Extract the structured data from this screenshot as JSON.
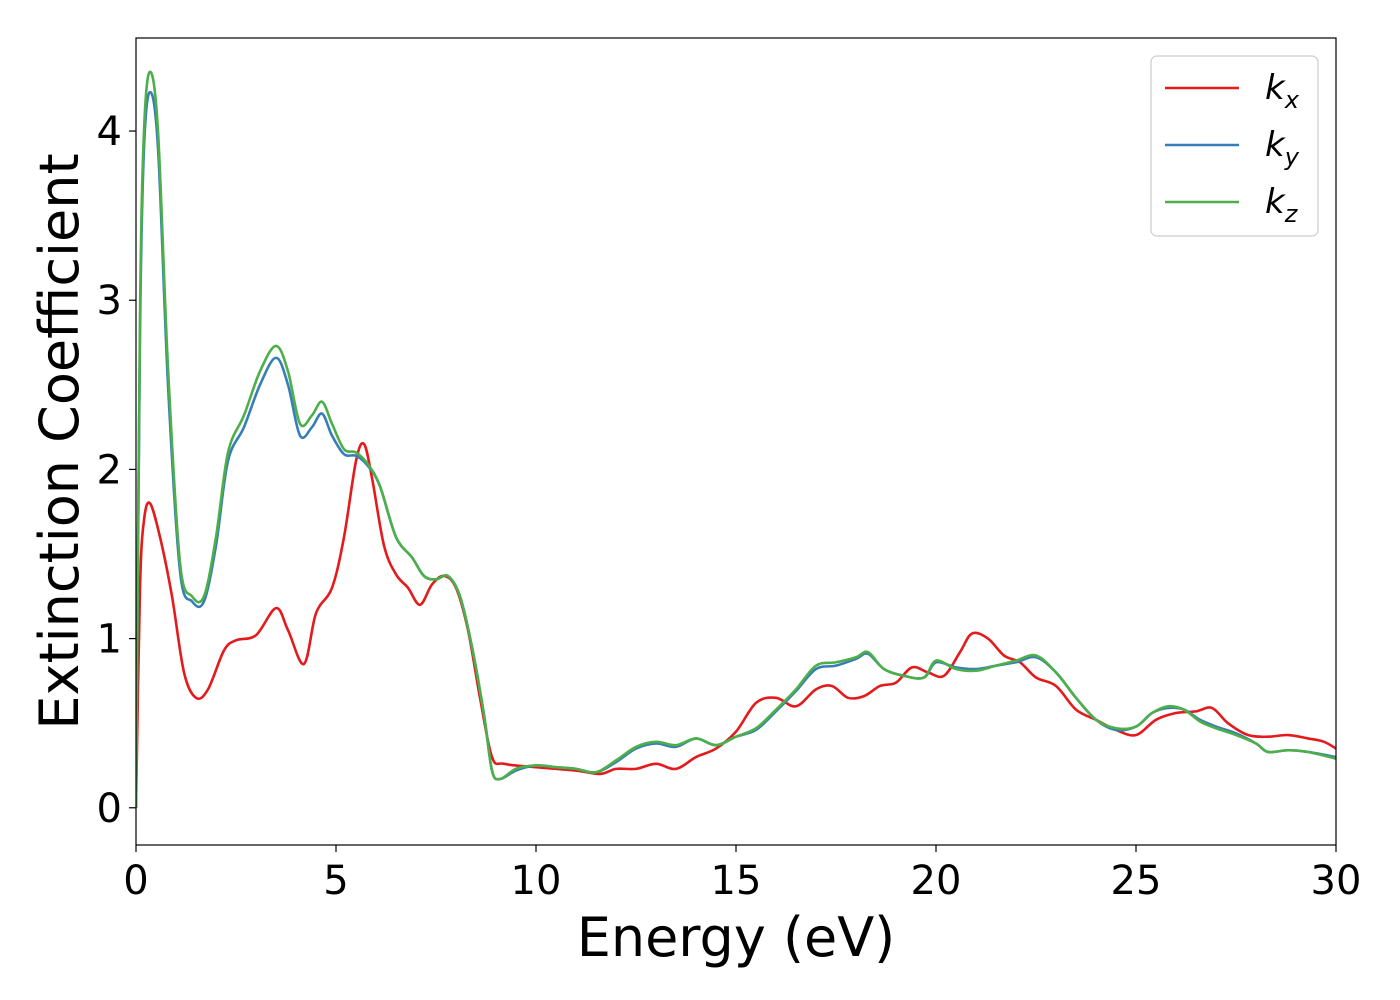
{
  "chart_data": {
    "type": "line",
    "xlabel": "Energy (eV)",
    "ylabel": "Extinction Coefficient",
    "xlim": [
      0,
      30
    ],
    "ylim": [
      -0.22,
      4.55
    ],
    "xticks": [
      "0",
      "5",
      "10",
      "15",
      "20",
      "25",
      "30"
    ],
    "yticks": [
      "0",
      "1",
      "2",
      "3",
      "4"
    ],
    "grid": false,
    "legend_position": "top-right",
    "series": [
      {
        "name": "k_x",
        "label_main": "k",
        "label_sub": "x",
        "color": "#e41a1c",
        "points": [
          [
            0,
            0
          ],
          [
            0.1,
            1.3
          ],
          [
            0.2,
            1.7
          ],
          [
            0.35,
            1.8
          ],
          [
            0.6,
            1.6
          ],
          [
            0.9,
            1.25
          ],
          [
            1.2,
            0.8
          ],
          [
            1.5,
            0.65
          ],
          [
            1.8,
            0.7
          ],
          [
            2.2,
            0.93
          ],
          [
            2.5,
            0.99
          ],
          [
            3.0,
            1.02
          ],
          [
            3.5,
            1.18
          ],
          [
            3.8,
            1.05
          ],
          [
            4.2,
            0.85
          ],
          [
            4.5,
            1.15
          ],
          [
            4.9,
            1.3
          ],
          [
            5.2,
            1.6
          ],
          [
            5.5,
            2.05
          ],
          [
            5.7,
            2.15
          ],
          [
            5.9,
            1.95
          ],
          [
            6.2,
            1.55
          ],
          [
            6.5,
            1.38
          ],
          [
            6.8,
            1.3
          ],
          [
            7.1,
            1.2
          ],
          [
            7.4,
            1.32
          ],
          [
            7.7,
            1.37
          ],
          [
            8.0,
            1.3
          ],
          [
            8.3,
            1.05
          ],
          [
            8.6,
            0.65
          ],
          [
            8.9,
            0.3
          ],
          [
            9.2,
            0.26
          ],
          [
            10,
            0.24
          ],
          [
            11,
            0.22
          ],
          [
            11.6,
            0.2
          ],
          [
            12.0,
            0.23
          ],
          [
            12.5,
            0.23
          ],
          [
            13.0,
            0.26
          ],
          [
            13.5,
            0.23
          ],
          [
            14.0,
            0.3
          ],
          [
            14.5,
            0.35
          ],
          [
            15.0,
            0.45
          ],
          [
            15.5,
            0.62
          ],
          [
            16.0,
            0.65
          ],
          [
            16.5,
            0.6
          ],
          [
            17.0,
            0.7
          ],
          [
            17.4,
            0.72
          ],
          [
            17.8,
            0.65
          ],
          [
            18.2,
            0.66
          ],
          [
            18.6,
            0.72
          ],
          [
            19.0,
            0.74
          ],
          [
            19.4,
            0.83
          ],
          [
            19.8,
            0.8
          ],
          [
            20.2,
            0.78
          ],
          [
            20.6,
            0.92
          ],
          [
            20.9,
            1.03
          ],
          [
            21.3,
            1.0
          ],
          [
            21.7,
            0.9
          ],
          [
            22.1,
            0.86
          ],
          [
            22.5,
            0.77
          ],
          [
            23.0,
            0.72
          ],
          [
            23.5,
            0.58
          ],
          [
            24.0,
            0.52
          ],
          [
            24.5,
            0.46
          ],
          [
            25.0,
            0.43
          ],
          [
            25.5,
            0.52
          ],
          [
            26.0,
            0.56
          ],
          [
            26.5,
            0.57
          ],
          [
            26.9,
            0.59
          ],
          [
            27.3,
            0.5
          ],
          [
            27.8,
            0.43
          ],
          [
            28.3,
            0.42
          ],
          [
            28.8,
            0.43
          ],
          [
            29.3,
            0.41
          ],
          [
            29.7,
            0.39
          ],
          [
            30,
            0.35
          ]
        ]
      },
      {
        "name": "k_y",
        "label_main": "k",
        "label_sub": "y",
        "color": "#377eb8",
        "points": [
          [
            0,
            0
          ],
          [
            0.1,
            2.8
          ],
          [
            0.2,
            3.9
          ],
          [
            0.35,
            4.23
          ],
          [
            0.55,
            3.9
          ],
          [
            0.8,
            2.5
          ],
          [
            1.1,
            1.4
          ],
          [
            1.4,
            1.22
          ],
          [
            1.7,
            1.22
          ],
          [
            2.0,
            1.55
          ],
          [
            2.3,
            2.05
          ],
          [
            2.7,
            2.25
          ],
          [
            3.1,
            2.5
          ],
          [
            3.5,
            2.66
          ],
          [
            3.8,
            2.5
          ],
          [
            4.1,
            2.2
          ],
          [
            4.4,
            2.25
          ],
          [
            4.65,
            2.33
          ],
          [
            4.9,
            2.2
          ],
          [
            5.2,
            2.09
          ],
          [
            5.5,
            2.08
          ],
          [
            5.8,
            2.02
          ],
          [
            6.1,
            1.9
          ],
          [
            6.5,
            1.6
          ],
          [
            6.9,
            1.48
          ],
          [
            7.2,
            1.37
          ],
          [
            7.5,
            1.35
          ],
          [
            7.8,
            1.37
          ],
          [
            8.1,
            1.25
          ],
          [
            8.4,
            0.95
          ],
          [
            8.7,
            0.55
          ],
          [
            8.9,
            0.22
          ],
          [
            9.1,
            0.17
          ],
          [
            9.5,
            0.22
          ],
          [
            10,
            0.25
          ],
          [
            10.5,
            0.24
          ],
          [
            11,
            0.23
          ],
          [
            11.5,
            0.21
          ],
          [
            12.0,
            0.27
          ],
          [
            12.5,
            0.35
          ],
          [
            13.0,
            0.38
          ],
          [
            13.5,
            0.36
          ],
          [
            14.0,
            0.41
          ],
          [
            14.5,
            0.37
          ],
          [
            15.0,
            0.42
          ],
          [
            15.5,
            0.46
          ],
          [
            16.0,
            0.57
          ],
          [
            16.5,
            0.69
          ],
          [
            17.0,
            0.82
          ],
          [
            17.5,
            0.84
          ],
          [
            18.0,
            0.88
          ],
          [
            18.3,
            0.91
          ],
          [
            18.7,
            0.82
          ],
          [
            19.2,
            0.78
          ],
          [
            19.7,
            0.77
          ],
          [
            20.0,
            0.86
          ],
          [
            20.5,
            0.83
          ],
          [
            21.0,
            0.82
          ],
          [
            21.5,
            0.84
          ],
          [
            22.0,
            0.86
          ],
          [
            22.5,
            0.89
          ],
          [
            23.0,
            0.8
          ],
          [
            23.5,
            0.65
          ],
          [
            24.0,
            0.52
          ],
          [
            24.5,
            0.46
          ],
          [
            25.0,
            0.48
          ],
          [
            25.4,
            0.56
          ],
          [
            25.8,
            0.59
          ],
          [
            26.2,
            0.58
          ],
          [
            26.6,
            0.52
          ],
          [
            27.0,
            0.48
          ],
          [
            27.5,
            0.44
          ],
          [
            28.0,
            0.38
          ],
          [
            28.3,
            0.33
          ],
          [
            28.8,
            0.34
          ],
          [
            29.3,
            0.33
          ],
          [
            30,
            0.3
          ]
        ]
      },
      {
        "name": "k_z",
        "label_main": "k",
        "label_sub": "z",
        "color": "#4daf4a",
        "points": [
          [
            0,
            0
          ],
          [
            0.1,
            2.9
          ],
          [
            0.2,
            4.0
          ],
          [
            0.35,
            4.35
          ],
          [
            0.55,
            4.0
          ],
          [
            0.8,
            2.6
          ],
          [
            1.1,
            1.45
          ],
          [
            1.4,
            1.25
          ],
          [
            1.7,
            1.25
          ],
          [
            2.0,
            1.6
          ],
          [
            2.3,
            2.1
          ],
          [
            2.7,
            2.32
          ],
          [
            3.1,
            2.58
          ],
          [
            3.5,
            2.73
          ],
          [
            3.8,
            2.58
          ],
          [
            4.1,
            2.27
          ],
          [
            4.4,
            2.32
          ],
          [
            4.65,
            2.4
          ],
          [
            4.9,
            2.27
          ],
          [
            5.2,
            2.12
          ],
          [
            5.5,
            2.1
          ],
          [
            5.8,
            2.03
          ],
          [
            6.1,
            1.9
          ],
          [
            6.5,
            1.6
          ],
          [
            6.9,
            1.48
          ],
          [
            7.2,
            1.37
          ],
          [
            7.5,
            1.35
          ],
          [
            7.8,
            1.37
          ],
          [
            8.1,
            1.25
          ],
          [
            8.4,
            0.95
          ],
          [
            8.7,
            0.55
          ],
          [
            8.9,
            0.22
          ],
          [
            9.1,
            0.17
          ],
          [
            9.5,
            0.23
          ],
          [
            10,
            0.25
          ],
          [
            10.5,
            0.24
          ],
          [
            11,
            0.23
          ],
          [
            11.5,
            0.21
          ],
          [
            12.0,
            0.28
          ],
          [
            12.5,
            0.36
          ],
          [
            13.0,
            0.39
          ],
          [
            13.5,
            0.37
          ],
          [
            14.0,
            0.41
          ],
          [
            14.5,
            0.37
          ],
          [
            15.0,
            0.42
          ],
          [
            15.5,
            0.47
          ],
          [
            16.0,
            0.58
          ],
          [
            16.5,
            0.7
          ],
          [
            17.0,
            0.84
          ],
          [
            17.5,
            0.86
          ],
          [
            18.0,
            0.89
          ],
          [
            18.3,
            0.92
          ],
          [
            18.7,
            0.82
          ],
          [
            19.2,
            0.78
          ],
          [
            19.7,
            0.77
          ],
          [
            20.0,
            0.87
          ],
          [
            20.5,
            0.82
          ],
          [
            21.0,
            0.81
          ],
          [
            21.5,
            0.84
          ],
          [
            22.0,
            0.87
          ],
          [
            22.5,
            0.9
          ],
          [
            23.0,
            0.8
          ],
          [
            23.5,
            0.65
          ],
          [
            24.0,
            0.52
          ],
          [
            24.5,
            0.47
          ],
          [
            25.0,
            0.48
          ],
          [
            25.4,
            0.56
          ],
          [
            25.8,
            0.6
          ],
          [
            26.2,
            0.58
          ],
          [
            26.6,
            0.51
          ],
          [
            27.0,
            0.47
          ],
          [
            27.5,
            0.43
          ],
          [
            28.0,
            0.38
          ],
          [
            28.3,
            0.33
          ],
          [
            28.8,
            0.34
          ],
          [
            29.3,
            0.33
          ],
          [
            30,
            0.29
          ]
        ]
      }
    ]
  }
}
